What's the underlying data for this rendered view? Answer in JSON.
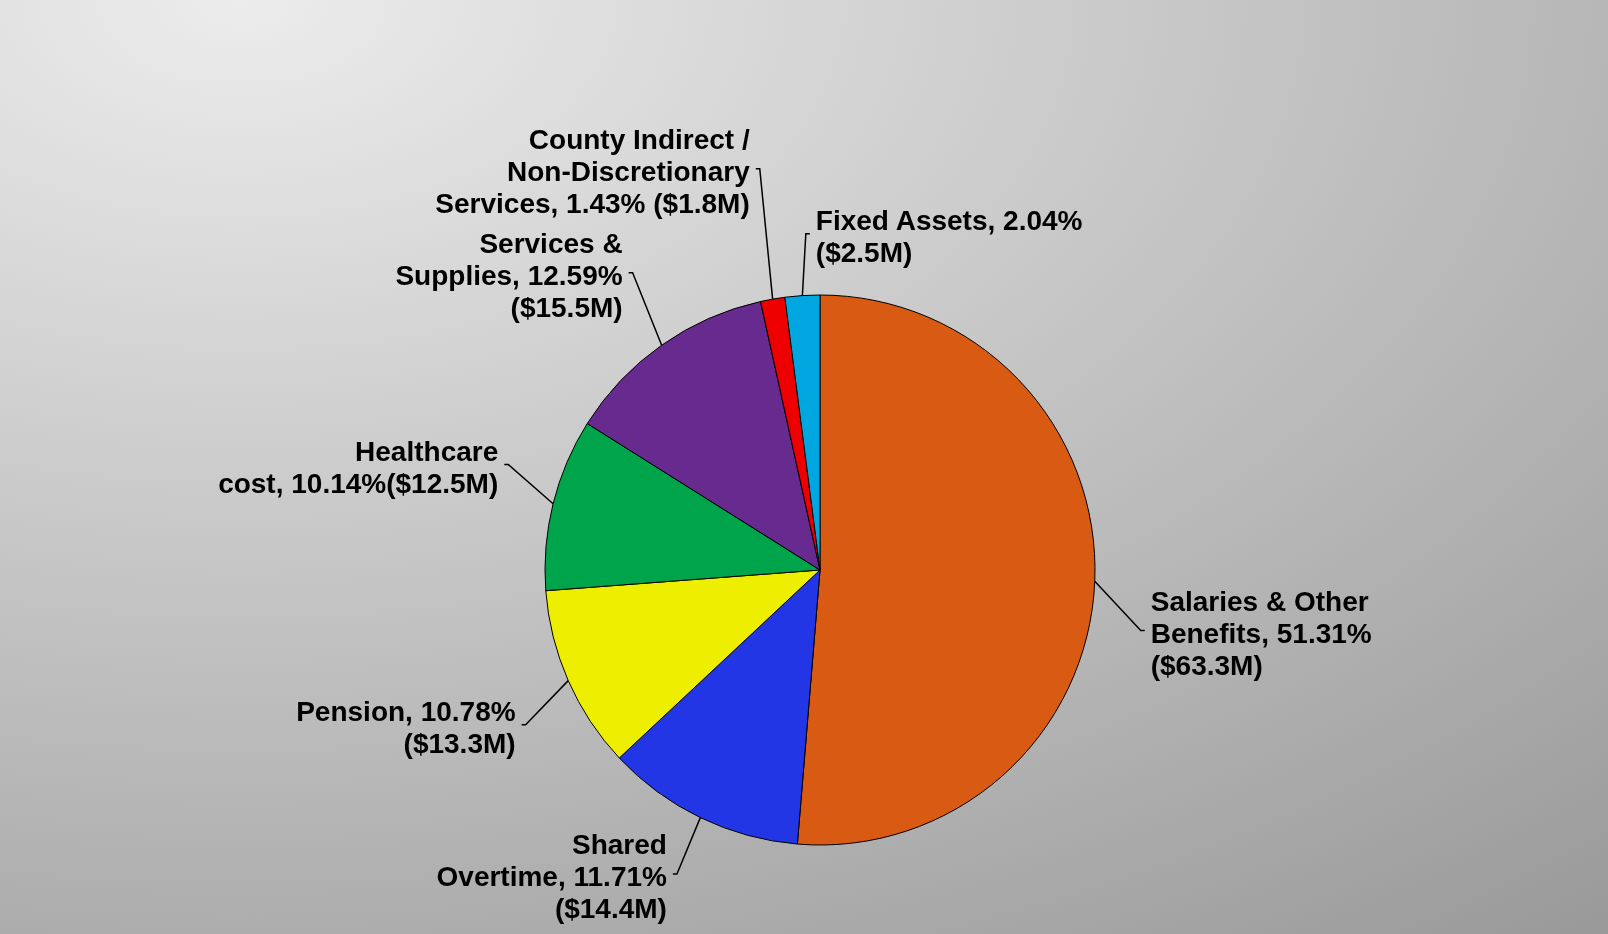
{
  "chart_data": {
    "type": "pie",
    "categories": [
      "Salaries & Other Benefits",
      "Shared Overtime",
      "Pension",
      "Healthcare cost",
      "Services & Supplies",
      "County Indirect / Non-Discretionary Services",
      "Fixed Assets"
    ],
    "values": [
      51.31,
      11.71,
      10.78,
      10.14,
      12.59,
      1.43,
      2.04
    ],
    "colors": [
      "#d95a12",
      "#2236e6",
      "#eeee00",
      "#00a44a",
      "#672a8e",
      "#ee0000",
      "#00a6e0"
    ],
    "value_labels": [
      "51.31% ($63.3M)",
      "11.71% ($14.4M)",
      "10.78% ($13.3M)",
      "10.14%($12.5M)",
      "12.59% ($15.5M)",
      "1.43% ($1.8M)",
      "2.04% ($2.5M)"
    ]
  }
}
